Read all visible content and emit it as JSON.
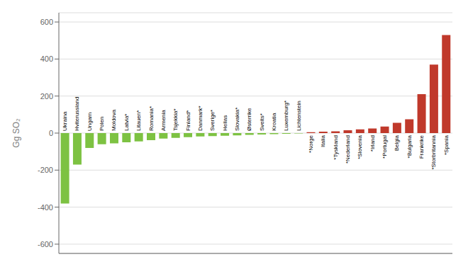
{
  "chart_data": {
    "type": "bar",
    "ylabel": "Gg SO₂",
    "categories": [
      "Ukraina",
      "Hviterussland",
      "Ungarn",
      "Polen",
      "Moldova",
      "Latvia*",
      "Litauen*",
      "Romania*",
      "Armenia",
      "Tsjekkia*",
      "Finland*",
      "Danmark*",
      "Sverige*",
      "Hellas",
      "Slovakia*",
      "Østerrike",
      "Sveits*",
      "Kroatia",
      "Luxemburg*",
      "Lichtenstein",
      "*Norge",
      "Italia",
      "*Tyskland",
      "*Nederland",
      "*Slovenia",
      "*Irland",
      "*Portugal",
      "Belgia",
      "*Bulgaria",
      "Frankrike",
      "*Storbritannia",
      "*Spania"
    ],
    "values": [
      -380,
      -170,
      -80,
      -60,
      -55,
      -50,
      -45,
      -38,
      -30,
      -26,
      -22,
      -18,
      -16,
      -14,
      -12,
      -10,
      -8,
      -6,
      -4,
      -2,
      5,
      8,
      10,
      15,
      20,
      25,
      35,
      55,
      75,
      210,
      370,
      530
    ],
    "colors": [
      "#7dc242",
      "#7dc242",
      "#7dc242",
      "#7dc242",
      "#7dc242",
      "#7dc242",
      "#7dc242",
      "#7dc242",
      "#7dc242",
      "#7dc242",
      "#7dc242",
      "#7dc242",
      "#7dc242",
      "#7dc242",
      "#7dc242",
      "#7dc242",
      "#7dc242",
      "#7dc242",
      "#7dc242",
      "#7dc242",
      "#c0392b",
      "#c0392b",
      "#c0392b",
      "#c0392b",
      "#c0392b",
      "#c0392b",
      "#c0392b",
      "#c0392b",
      "#c0392b",
      "#c0392b",
      "#c0392b",
      "#c0392b"
    ],
    "ylim": [
      -650,
      650
    ],
    "yticks": [
      -600,
      -400,
      -200,
      0,
      200,
      400,
      600
    ],
    "grid": true,
    "tick_labels": "y"
  }
}
